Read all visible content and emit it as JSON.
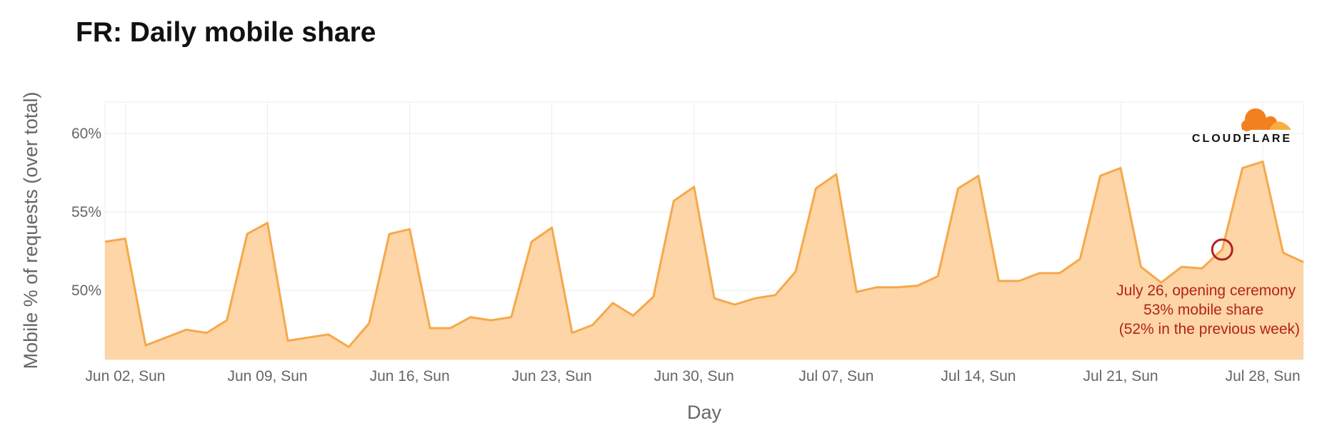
{
  "chart_data": {
    "type": "area",
    "title": "FR: Daily mobile share",
    "xlabel": "Day",
    "ylabel": "Mobile % of requests (over total)",
    "ylim": [
      45.6,
      62
    ],
    "y_ticks": [
      50,
      55,
      60
    ],
    "y_tick_labels": [
      "50%",
      "55%",
      "60%"
    ],
    "x_ticks": [
      "2024-06-02",
      "2024-06-09",
      "2024-06-16",
      "2024-06-23",
      "2024-06-30",
      "2024-07-07",
      "2024-07-14",
      "2024-07-21",
      "2024-07-28"
    ],
    "x_tick_labels": [
      "Jun 02, Sun",
      "Jun 09, Sun",
      "Jun 16, Sun",
      "Jun 23, Sun",
      "Jun 30, Sun",
      "Jul 07, Sun",
      "Jul 14, Sun",
      "Jul 21, Sun",
      "Jul 28, Sun"
    ],
    "grid": true,
    "colors": {
      "line": "#f6a84a",
      "fill": "#fdd5a6",
      "annotation": "#b3221a"
    },
    "series": [
      {
        "x": [
          "2024-06-01",
          "2024-06-02",
          "2024-06-03",
          "2024-06-04",
          "2024-06-05",
          "2024-06-06",
          "2024-06-07",
          "2024-06-08",
          "2024-06-09",
          "2024-06-10",
          "2024-06-11",
          "2024-06-12",
          "2024-06-13",
          "2024-06-14",
          "2024-06-15",
          "2024-06-16",
          "2024-06-17",
          "2024-06-18",
          "2024-06-19",
          "2024-06-20",
          "2024-06-21",
          "2024-06-22",
          "2024-06-23",
          "2024-06-24",
          "2024-06-25",
          "2024-06-26",
          "2024-06-27",
          "2024-06-28",
          "2024-06-29",
          "2024-06-30",
          "2024-07-01",
          "2024-07-02",
          "2024-07-03",
          "2024-07-04",
          "2024-07-05",
          "2024-07-06",
          "2024-07-07",
          "2024-07-08",
          "2024-07-09",
          "2024-07-10",
          "2024-07-11",
          "2024-07-12",
          "2024-07-13",
          "2024-07-14",
          "2024-07-15",
          "2024-07-16",
          "2024-07-17",
          "2024-07-18",
          "2024-07-19",
          "2024-07-20",
          "2024-07-21",
          "2024-07-22",
          "2024-07-23",
          "2024-07-24",
          "2024-07-25",
          "2024-07-26",
          "2024-07-27",
          "2024-07-28",
          "2024-07-29",
          "2024-07-30"
        ],
        "values": [
          53.1,
          53.3,
          46.5,
          47.0,
          47.5,
          47.3,
          48.1,
          53.6,
          54.3,
          46.8,
          47.0,
          47.2,
          46.4,
          47.9,
          53.6,
          53.9,
          47.6,
          47.6,
          48.3,
          48.1,
          48.3,
          53.1,
          54.0,
          47.3,
          47.8,
          49.2,
          48.4,
          49.6,
          55.7,
          56.6,
          49.5,
          49.1,
          49.5,
          49.7,
          51.2,
          56.5,
          57.4,
          49.9,
          50.2,
          50.2,
          50.3,
          50.9,
          56.5,
          57.3,
          50.6,
          50.6,
          51.1,
          51.1,
          52.0,
          57.3,
          57.8,
          51.5,
          50.5,
          51.5,
          51.4,
          52.6,
          57.8,
          58.2,
          52.4,
          51.8
        ]
      }
    ],
    "highlight": {
      "x": "2024-07-26",
      "y": 52.6
    },
    "annotation": [
      "July 26, opening ceremony",
      "53% mobile share",
      "(52% in the previous week)"
    ],
    "logo_text": "CLOUDFLARE"
  }
}
